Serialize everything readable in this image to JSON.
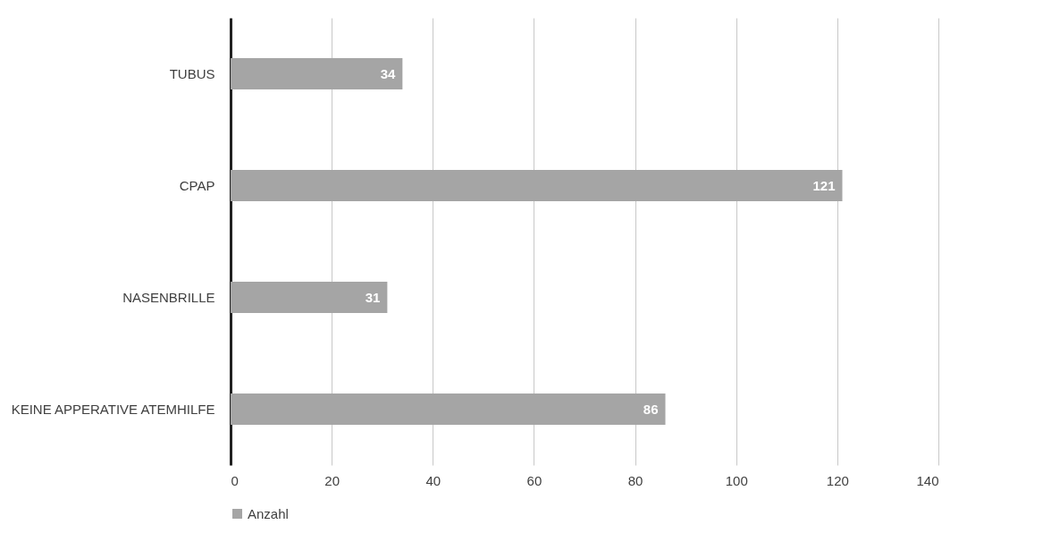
{
  "chart_data": {
    "type": "bar",
    "orientation": "horizontal",
    "categories": [
      "TUBUS",
      "CPAP",
      "NASENBRILLE",
      "KEINE APPERATIVE ATEMHILFE"
    ],
    "series": [
      {
        "name": "Anzahl",
        "color": "#a5a5a5",
        "values": [
          34,
          121,
          31,
          86
        ]
      }
    ],
    "xlim": [
      0,
      140
    ],
    "xticks": [
      0,
      20,
      40,
      60,
      80,
      100,
      120,
      140
    ],
    "grid": "x",
    "legend": "bottom",
    "data_labels": true
  }
}
